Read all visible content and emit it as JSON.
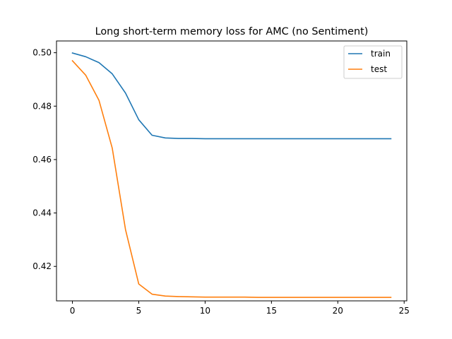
{
  "chart_data": {
    "type": "line",
    "title": "Long short-term memory loss for AMC (no Sentiment)",
    "xlabel": "",
    "ylabel": "",
    "xlim": [
      -1.2,
      25.2
    ],
    "ylim": [
      0.4071,
      0.5044
    ],
    "xticks": [
      0,
      5,
      10,
      15,
      20,
      25
    ],
    "yticks": [
      0.42,
      0.44,
      0.46,
      0.48,
      0.5
    ],
    "ytick_labels": [
      "0.42",
      "0.44",
      "0.46",
      "0.48",
      "0.50"
    ],
    "grid": false,
    "legend": "top-right",
    "x": [
      0,
      1,
      2,
      3,
      4,
      5,
      6,
      7,
      8,
      9,
      10,
      11,
      12,
      13,
      14,
      15,
      16,
      17,
      18,
      19,
      20,
      21,
      22,
      23,
      24
    ],
    "series": [
      {
        "name": "train",
        "color": "#1f77b4",
        "values": [
          0.4999,
          0.4985,
          0.4963,
          0.4921,
          0.4849,
          0.4749,
          0.4691,
          0.4681,
          0.4679,
          0.4679,
          0.4678,
          0.4678,
          0.4678,
          0.4678,
          0.4678,
          0.4678,
          0.4678,
          0.4678,
          0.4678,
          0.4678,
          0.4678,
          0.4678,
          0.4678,
          0.4678,
          0.4678
        ]
      },
      {
        "name": "test",
        "color": "#ff7f0e",
        "values": [
          0.497,
          0.4916,
          0.4822,
          0.4643,
          0.4338,
          0.4134,
          0.4096,
          0.4089,
          0.4087,
          0.4086,
          0.4085,
          0.4085,
          0.4085,
          0.4085,
          0.4084,
          0.4084,
          0.4084,
          0.4084,
          0.4084,
          0.4084,
          0.4084,
          0.4084,
          0.4084,
          0.4084,
          0.4084
        ]
      }
    ]
  }
}
